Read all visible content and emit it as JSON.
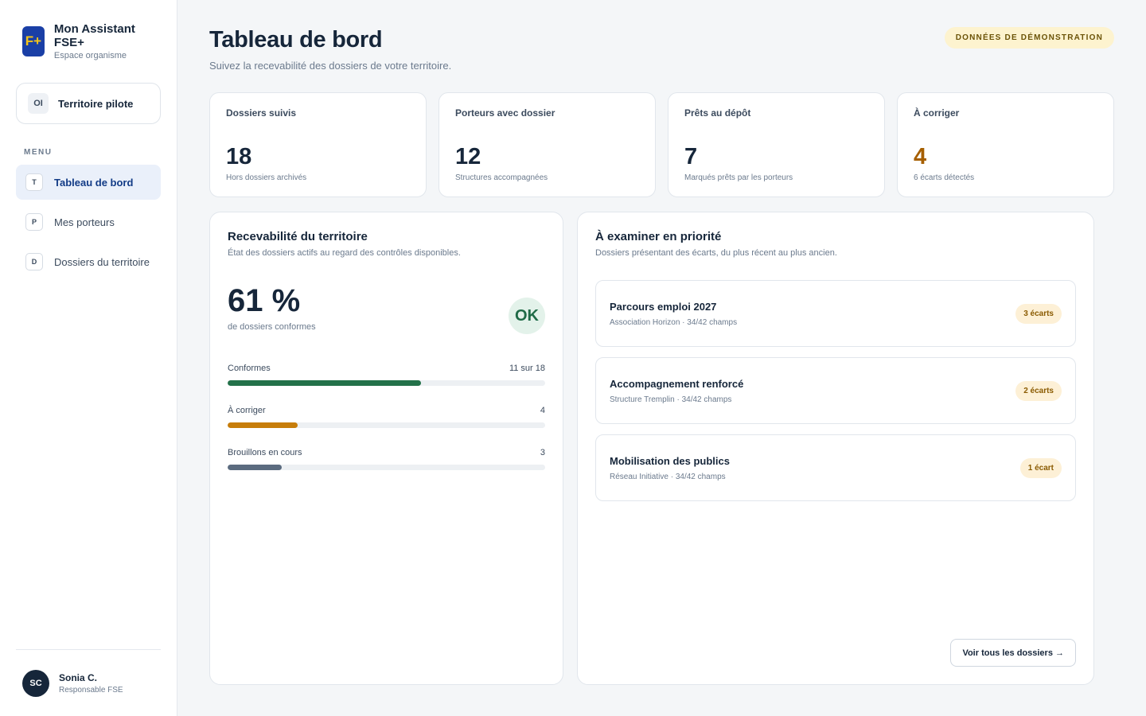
{
  "brand": {
    "logo": "F+",
    "title": "Mon Assistant FSE+",
    "subtitle": "Espace organisme"
  },
  "territory": {
    "badge": "OI",
    "name": "Territoire pilote"
  },
  "sidebar": {
    "menu_label": "MENU",
    "items": [
      {
        "badge": "T",
        "label": "Tableau de bord",
        "active": true
      },
      {
        "badge": "P",
        "label": "Mes porteurs",
        "active": false
      },
      {
        "badge": "D",
        "label": "Dossiers du territoire",
        "active": false
      }
    ]
  },
  "user": {
    "initials": "SC",
    "name": "Sonia C.",
    "role": "Responsable FSE"
  },
  "header": {
    "title": "Tableau de bord",
    "subtitle": "Suivez la recevabilité des dossiers de votre territoire.",
    "demo_badge": "DONNÉES DE DÉMONSTRATION"
  },
  "kpis": [
    {
      "label": "Dossiers suivis",
      "value": "18",
      "note": "Hors dossiers archivés"
    },
    {
      "label": "Porteurs avec dossier",
      "value": "12",
      "note": "Structures accompagnées"
    },
    {
      "label": "Prêts au dépôt",
      "value": "7",
      "note": "Marqués prêts par les porteurs"
    },
    {
      "label": "À corriger",
      "value": "4",
      "note": "6 écarts détectés"
    }
  ],
  "recevabilite": {
    "title": "Recevabilité du territoire",
    "subtitle": "État des dossiers actifs au regard des contrôles disponibles.",
    "percent": "61 %",
    "percent_label": "de dossiers conformes",
    "status": "OK",
    "bars": [
      {
        "label": "Conformes",
        "value_text": "11 sur 18",
        "fraction": 0.61,
        "color": "#237149"
      },
      {
        "label": "À corriger",
        "value_text": "4",
        "fraction": 0.22,
        "color": "#c77d0a"
      },
      {
        "label": "Brouillons en cours",
        "value_text": "3",
        "fraction": 0.17,
        "color": "#5b6b7f"
      }
    ]
  },
  "priority": {
    "title": "À examiner en priorité",
    "subtitle": "Dossiers présentant des écarts, du plus récent au plus ancien.",
    "cases": [
      {
        "title": "Parcours emploi 2027",
        "meta": "Association Horizon · 34/42 champs",
        "gaps": "3 écarts"
      },
      {
        "title": "Accompagnement renforcé",
        "meta": "Structure Tremplin · 34/42 champs",
        "gaps": "2 écarts"
      },
      {
        "title": "Mobilisation des publics",
        "meta": "Réseau Initiative · 34/42 champs",
        "gaps": "1 écart"
      }
    ],
    "see_all": "Voir tous les dossiers →"
  },
  "colors": {
    "accent": "#123b86",
    "brand_blue": "#1a3fa6",
    "brand_yellow": "#f5c518",
    "warning": "#a65f00",
    "success": "#1f6b47"
  },
  "icons": {
    "logo": "fse-plus-logo",
    "arrow": "arrow-right-icon"
  }
}
